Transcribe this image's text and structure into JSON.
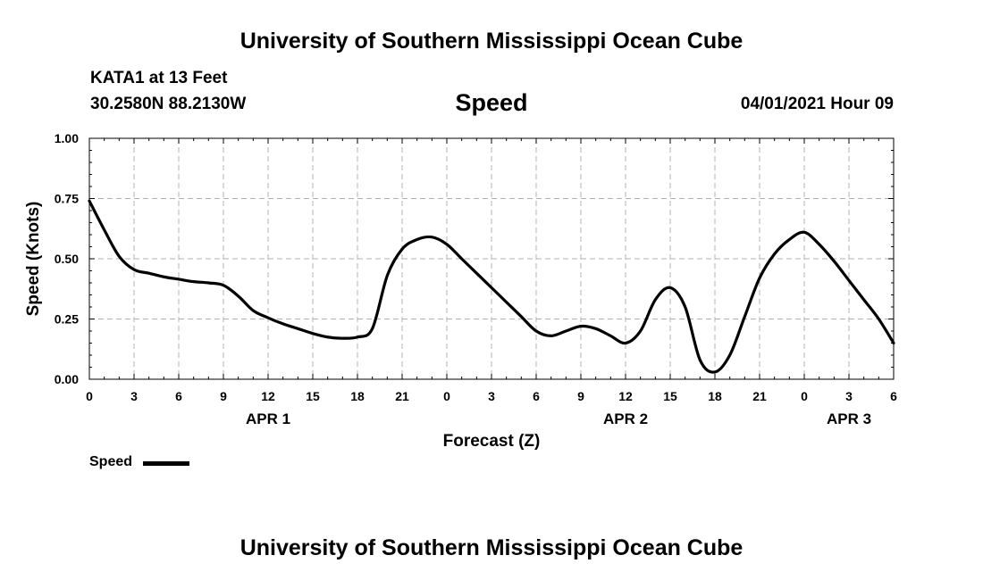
{
  "header": {
    "org_title": "University of Southern Mississippi Ocean Cube",
    "station": "KATA1 at 13 Feet",
    "coords": "30.2580N  88.2130W",
    "chart_title": "Speed",
    "datetime": "04/01/2021 Hour 09"
  },
  "footer": {
    "org_title": "University of Southern Mississippi Ocean Cube"
  },
  "legend": {
    "label": "Speed"
  },
  "chart_data": {
    "type": "line",
    "title": "Speed",
    "xlabel": "Forecast (Z)",
    "ylabel": "Speed (Knots)",
    "x_unit": "hours since 2021-04-01 00Z",
    "xlim": [
      0,
      54
    ],
    "ylim": [
      0,
      1
    ],
    "grid": true,
    "legend_position": "bottom-left",
    "x_ticks": [
      0,
      3,
      6,
      9,
      12,
      15,
      18,
      21,
      24,
      27,
      30,
      33,
      36,
      39,
      42,
      45,
      48,
      51,
      54
    ],
    "x_tick_labels": [
      "0",
      "3",
      "6",
      "9",
      "12",
      "15",
      "18",
      "21",
      "0",
      "3",
      "6",
      "9",
      "12",
      "15",
      "18",
      "21",
      "0",
      "3",
      "6"
    ],
    "y_ticks": [
      0,
      0.25,
      0.5,
      0.75,
      1.0
    ],
    "y_tick_labels": [
      "0.00",
      "0.25",
      "0.50",
      "0.75",
      "1.00"
    ],
    "date_labels": [
      {
        "x": 12,
        "label": "APR 1"
      },
      {
        "x": 36,
        "label": "APR 2"
      },
      {
        "x": 51,
        "label": "APR 3"
      }
    ],
    "series": [
      {
        "name": "Speed",
        "color": "#000000",
        "x": [
          0,
          1,
          2,
          3,
          4,
          5,
          6,
          7,
          8,
          9,
          10,
          11,
          12,
          13,
          14,
          15,
          16,
          17,
          18,
          19,
          20,
          21,
          22,
          23,
          24,
          25,
          26,
          27,
          28,
          29,
          30,
          31,
          32,
          33,
          34,
          35,
          36,
          37,
          38,
          39,
          40,
          41,
          42,
          43,
          44,
          45,
          46,
          47,
          48,
          49,
          50,
          51,
          52,
          53,
          54
        ],
        "y": [
          0.74,
          0.62,
          0.51,
          0.455,
          0.44,
          0.425,
          0.415,
          0.405,
          0.4,
          0.39,
          0.345,
          0.285,
          0.255,
          0.23,
          0.21,
          0.19,
          0.175,
          0.17,
          0.175,
          0.21,
          0.43,
          0.54,
          0.58,
          0.59,
          0.56,
          0.5,
          0.44,
          0.38,
          0.32,
          0.26,
          0.2,
          0.18,
          0.2,
          0.22,
          0.21,
          0.18,
          0.15,
          0.2,
          0.33,
          0.38,
          0.3,
          0.08,
          0.03,
          0.1,
          0.26,
          0.42,
          0.52,
          0.58,
          0.61,
          0.56,
          0.49,
          0.41,
          0.33,
          0.25,
          0.15
        ]
      }
    ]
  }
}
